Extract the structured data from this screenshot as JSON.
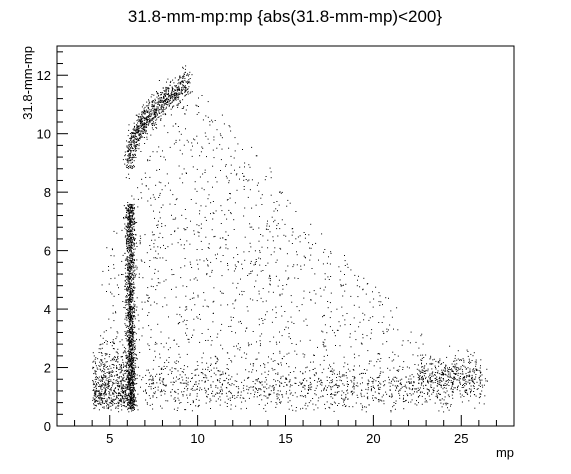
{
  "chart_data": {
    "type": "scatter",
    "title": "31.8-mm-mp:mp {abs(31.8-mm-mp)<200}",
    "xlabel": "mp",
    "ylabel": "31.8-mm-mp",
    "xlim": [
      2,
      28
    ],
    "ylim": [
      0,
      13
    ],
    "x_major_ticks": [
      5,
      10,
      15,
      20,
      25
    ],
    "y_major_ticks": [
      0,
      2,
      4,
      6,
      8,
      10,
      12
    ],
    "grid": false,
    "legend": "none",
    "marker_color": "#000000",
    "point_regions": [
      {
        "description": "upper curved band",
        "x_range": [
          6.0,
          9.5
        ],
        "y_range": [
          8.5,
          11.9
        ]
      },
      {
        "description": "vertical dense band",
        "x_range": [
          5.8,
          6.6
        ],
        "y_range": [
          0.6,
          7.5
        ]
      },
      {
        "description": "lower-left cluster",
        "x_range": [
          3.8,
          6.5
        ],
        "y_range": [
          0.4,
          3.0
        ]
      },
      {
        "description": "diffuse triangle fill",
        "x_range": [
          4.5,
          26.0
        ],
        "y_range": [
          0.5,
          11.5
        ]
      },
      {
        "description": "bottom horizontal band",
        "x_range": [
          7.0,
          26.5
        ],
        "y_range": [
          0.8,
          2.2
        ]
      }
    ]
  }
}
